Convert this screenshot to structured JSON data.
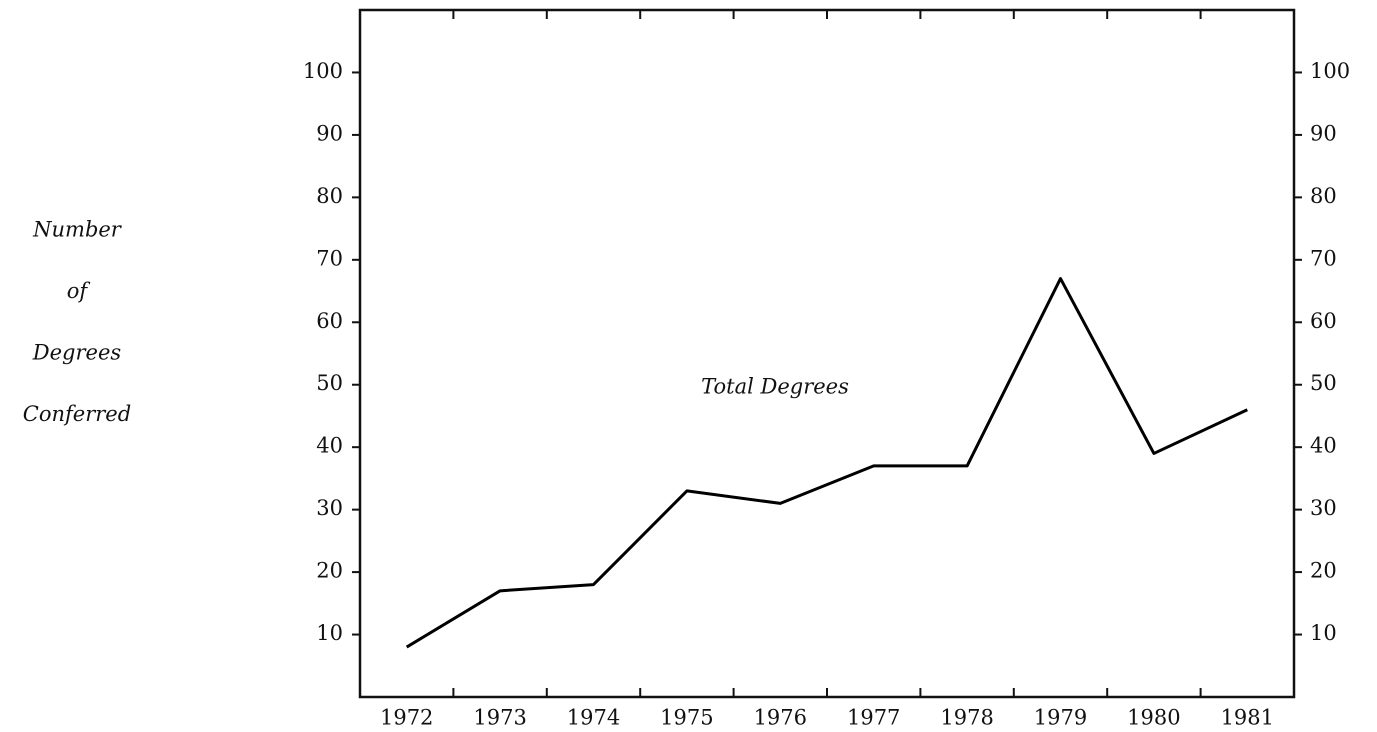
{
  "chart_data": {
    "type": "line",
    "ylabel": [
      "Number",
      "of",
      "Degrees",
      "Conferred"
    ],
    "annotation": "Total Degrees",
    "categories": [
      "1972",
      "1973",
      "1974",
      "1975",
      "1976",
      "1977",
      "1978",
      "1979",
      "1980",
      "1981"
    ],
    "series": [
      {
        "name": "Total Degrees",
        "color": "#000000",
        "values": [
          8,
          17,
          18,
          33,
          31,
          37,
          37,
          67,
          39,
          46
        ]
      }
    ],
    "ylim": [
      0,
      110
    ],
    "yticks": [
      10,
      20,
      30,
      40,
      50,
      60,
      70,
      80,
      90,
      100
    ],
    "y2lim": [
      0,
      110
    ],
    "y2ticks": [
      10,
      20,
      30,
      40,
      50,
      60,
      70,
      80,
      90,
      100
    ],
    "grid": false
  }
}
